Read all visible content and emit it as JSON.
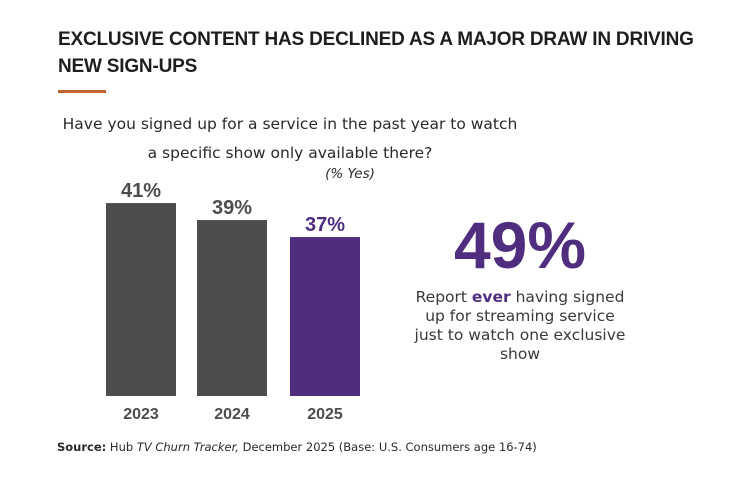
{
  "title": "EXCLUSIVE CONTENT HAS DECLINED AS A MAJOR DRAW IN DRIVING NEW SIGN-UPS",
  "colors": {
    "accent_rule": "#c0652e",
    "bar_gray": "#4d4d4d",
    "bar_highlight": "#4f2d7f"
  },
  "chart_data": {
    "type": "bar",
    "title": "Have you signed up for a service in the past year to watch a specific show only available there?",
    "subtitle": "(% Yes)",
    "categories": [
      "2023",
      "2024",
      "2025"
    ],
    "values": [
      41,
      39,
      37
    ],
    "data_labels": [
      "41%",
      "39%",
      "37%"
    ],
    "highlight_category": "2025",
    "grid": false
  },
  "callout": {
    "value": "49%",
    "text_before": "Report ",
    "text_emphasis": "ever",
    "text_after": " having signed up for streaming service just to watch one exclusive show"
  },
  "source": {
    "label": "Source:",
    "text_plain": " Hub ",
    "text_italic": "TV Churn Tracker,",
    "text_rest": " December 2025 (Base: U.S. Consumers age 16-74)"
  }
}
